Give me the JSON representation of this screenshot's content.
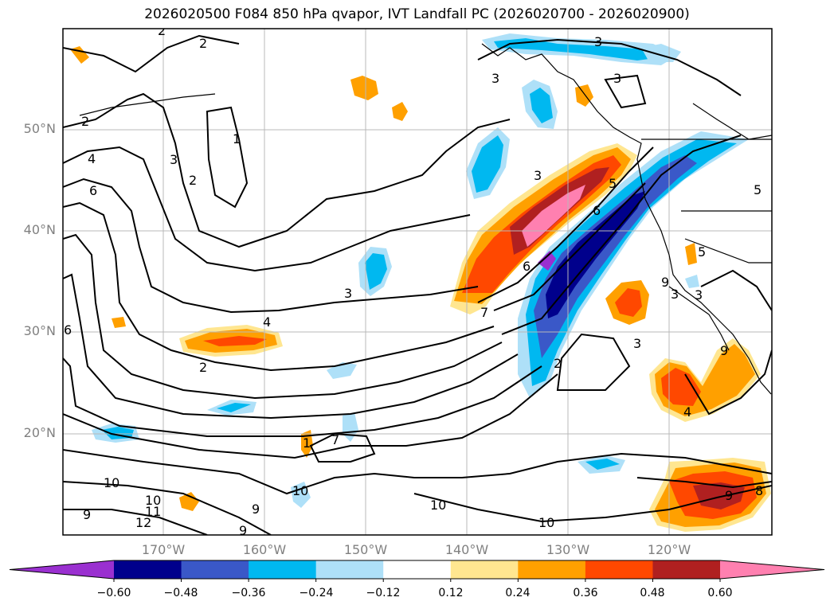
{
  "title": "2026020500 F084 850 hPa qvapor, IVT Landfall PC (2026020700 - 2026020900)",
  "lat_ticks": [
    "50°N",
    "40°N",
    "30°N",
    "20°N"
  ],
  "lon_ticks": [
    "170°W",
    "160°W",
    "150°W",
    "140°W",
    "130°W",
    "120°W"
  ],
  "contour_labels": [
    "2",
    "2",
    "1",
    "2",
    "3",
    "4",
    "6",
    "2",
    "3",
    "3",
    "3",
    "3",
    "5",
    "6",
    "6",
    "7",
    "3",
    "2",
    "3",
    "4",
    "5",
    "3",
    "9",
    "8",
    "9",
    "10",
    "10",
    "11",
    "12",
    "10",
    "10",
    "9",
    "7",
    "1",
    "9",
    "6",
    "2",
    "5",
    "4",
    "9",
    "10",
    "9",
    "3"
  ],
  "colorbar": {
    "levels": [
      "−0.60",
      "−0.48",
      "−0.36",
      "−0.24",
      "−0.12",
      "0.12",
      "0.24",
      "0.36",
      "0.48",
      "0.60"
    ],
    "colors": [
      "#9a30d0",
      "#00008c",
      "#3a58c8",
      "#00b8f0",
      "#aee0f8",
      "#ffffff",
      "#ffe690",
      "#ffa000",
      "#ff4800",
      "#b02020",
      "#ff80b0"
    ]
  },
  "shading_colors": {
    "neg_light": "#aee0f8",
    "neg_cyan": "#00b8f0",
    "neg_blue": "#3a58c8",
    "neg_navy": "#00008c",
    "neg_purple": "#9a30d0",
    "pos_yellow": "#ffe690",
    "pos_orange": "#ffa000",
    "pos_red": "#ff4800",
    "pos_dred": "#b02020",
    "pos_pink": "#ff80b0"
  }
}
